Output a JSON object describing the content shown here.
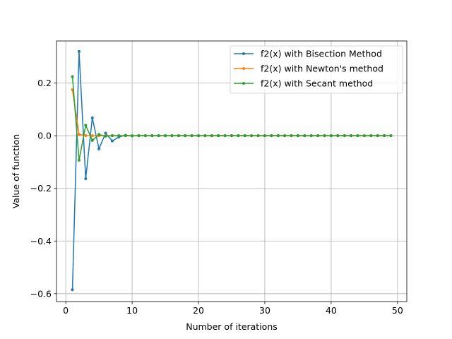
{
  "chart_data": {
    "type": "line",
    "title": "",
    "xlabel": "Number of iterations",
    "ylabel": "Value of function",
    "xlim": [
      -1.4,
      51.4
    ],
    "ylim": [
      -0.63,
      0.36
    ],
    "grid": true,
    "legend_position": "top-right",
    "xticks": [
      0,
      10,
      20,
      30,
      40,
      50
    ],
    "xtick_labels": [
      "0",
      "10",
      "20",
      "30",
      "40",
      "50"
    ],
    "yticks": [
      -0.6,
      -0.4,
      -0.2,
      0.0,
      0.2
    ],
    "ytick_labels": [
      "−0.6",
      "−0.4",
      "−0.2",
      "0.0",
      "0.2"
    ],
    "series": [
      {
        "name": "f2(x) with Bisection Method",
        "color": "#1f77b4",
        "x": [
          1,
          2,
          3,
          4,
          5,
          6,
          7,
          8,
          9,
          10,
          11,
          12,
          13,
          14,
          15,
          16,
          17,
          18,
          19,
          20,
          21,
          22,
          23,
          24,
          25,
          26,
          27,
          28,
          29,
          30,
          31,
          32,
          33,
          34,
          35,
          36,
          37,
          38,
          39,
          40,
          41,
          42,
          43,
          44,
          45,
          46,
          47,
          48,
          49
        ],
        "y": [
          -0.585,
          0.32,
          -0.163,
          0.068,
          -0.05,
          0.01,
          -0.02,
          -0.005,
          0.002,
          -0.001,
          0.0005,
          0,
          0,
          0,
          0,
          0,
          0,
          0,
          0,
          0,
          0,
          0,
          0,
          0,
          0,
          0,
          0,
          0,
          0,
          0,
          0,
          0,
          0,
          0,
          0,
          0,
          0,
          0,
          0,
          0,
          0,
          0,
          0,
          0,
          0,
          0,
          0,
          0,
          0
        ]
      },
      {
        "name": "f2(x) with Newton's method",
        "color": "#ff7f0e",
        "x": [
          1,
          2,
          3,
          4,
          5,
          6,
          7,
          8,
          9,
          10,
          11,
          12,
          13,
          14,
          15,
          16,
          17,
          18,
          19,
          20,
          21,
          22,
          23,
          24,
          25,
          26,
          27,
          28,
          29,
          30,
          31,
          32,
          33,
          34,
          35,
          36,
          37,
          38,
          39,
          40,
          41,
          42,
          43,
          44,
          45,
          46,
          47,
          48,
          49
        ],
        "y": [
          0.175,
          0.005,
          0.0005,
          0,
          0,
          0,
          0,
          0,
          0,
          0,
          0,
          0,
          0,
          0,
          0,
          0,
          0,
          0,
          0,
          0,
          0,
          0,
          0,
          0,
          0,
          0,
          0,
          0,
          0,
          0,
          0,
          0,
          0,
          0,
          0,
          0,
          0,
          0,
          0,
          0,
          0,
          0,
          0,
          0,
          0,
          0,
          0,
          0,
          0
        ]
      },
      {
        "name": "f2(x) with Secant method",
        "color": "#2ca02c",
        "x": [
          1,
          2,
          3,
          4,
          5,
          6,
          7,
          8,
          9,
          10,
          11,
          12,
          13,
          14,
          15,
          16,
          17,
          18,
          19,
          20,
          21,
          22,
          23,
          24,
          25,
          26,
          27,
          28,
          29,
          30,
          31,
          32,
          33,
          34,
          35,
          36,
          37,
          38,
          39,
          40,
          41,
          42,
          43,
          44,
          45,
          46,
          47,
          48,
          49
        ],
        "y": [
          0.225,
          -0.093,
          0.04,
          -0.018,
          0.005,
          -0.002,
          0.0005,
          0,
          0,
          0,
          0,
          0,
          0,
          0,
          0,
          0,
          0,
          0,
          0,
          0,
          0,
          0,
          0,
          0,
          0,
          0,
          0,
          0,
          0,
          0,
          0,
          0,
          0,
          0,
          0,
          0,
          0,
          0,
          0,
          0,
          0,
          0,
          0,
          0,
          0,
          0,
          0,
          0,
          0
        ]
      }
    ]
  }
}
